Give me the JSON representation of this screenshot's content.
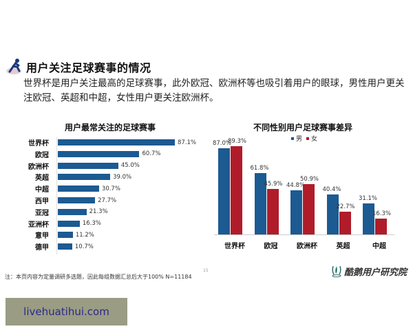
{
  "header": {
    "title": "用户关注足球赛事的情况",
    "icon": "runner-icon"
  },
  "summary": "世界杯是用户关注最高的足球赛事，此外欧冠、欧洲杯等也吸引着用户的眼球，男性用户更关注欧冠、英超和中超，女性用户更关注欧洲杯。",
  "colors": {
    "primary_blue": "#1c5a92",
    "female_red": "#b01c2a",
    "watermark_bg": "#9a9c84",
    "watermark_text": "#2a2a8a"
  },
  "chart_data": [
    {
      "type": "bar",
      "orientation": "horizontal",
      "title": "用户最常关注的足球赛事",
      "categories": [
        "世界杯",
        "欧冠",
        "欧洲杯",
        "英超",
        "中超",
        "西甲",
        "亚冠",
        "亚洲杯",
        "意甲",
        "德甲"
      ],
      "values": [
        87.1,
        60.7,
        45.0,
        39.0,
        30.7,
        27.7,
        21.3,
        16.3,
        11.2,
        10.7
      ],
      "labels": [
        "87.1%",
        "60.7%",
        "45.0%",
        "39.0%",
        "30.7%",
        "27.7%",
        "21.3%",
        "16.3%",
        "11.2%",
        "10.7%"
      ],
      "xlabel": "",
      "ylabel": "",
      "unit": "%",
      "grid": false
    },
    {
      "type": "bar",
      "orientation": "vertical",
      "title": "不同性别用户足球赛事差异",
      "categories": [
        "世界杯",
        "欧冠",
        "欧洲杯",
        "英超",
        "中超"
      ],
      "series": [
        {
          "name": "男",
          "color": "#1c5a92",
          "values": [
            87.0,
            61.8,
            44.8,
            40.4,
            31.1
          ],
          "labels": [
            "87.0%",
            "61.8%",
            "44.8%",
            "40.4%",
            "31.1%"
          ]
        },
        {
          "name": "女",
          "color": "#b01c2a",
          "values": [
            89.3,
            45.9,
            50.9,
            22.7,
            16.3
          ],
          "labels": [
            "89.3%",
            "45.9%",
            "50.9%",
            "22.7%",
            "16.3%"
          ]
        }
      ],
      "legend_position": "top",
      "xlabel": "",
      "ylabel": "",
      "unit": "%",
      "grid": false
    }
  ],
  "footer": {
    "note": "注：本页内容为定量调研多选题，因此每组数据汇总后大于100%  N=11184",
    "page_number": "15",
    "brand": "酷鹅用户研究院"
  },
  "watermark": "livehuatihui.com"
}
